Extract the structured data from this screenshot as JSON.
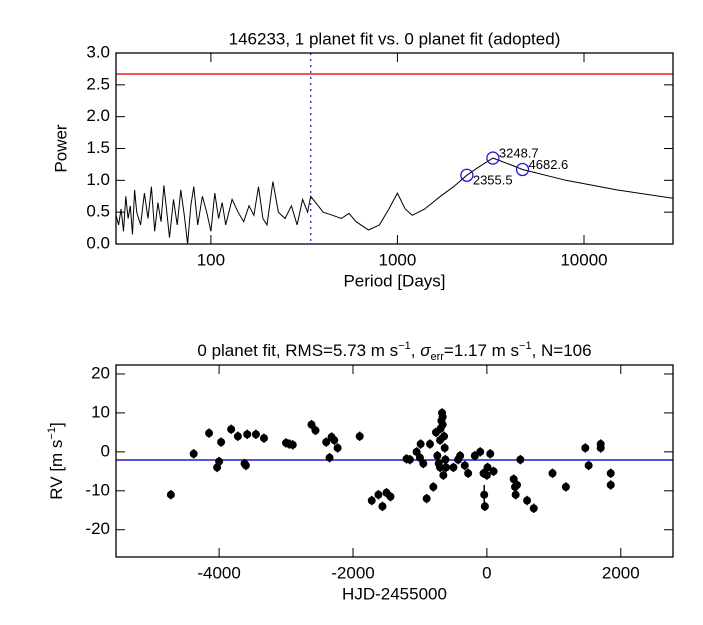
{
  "chart_data": [
    {
      "type": "line",
      "title": "146233,  1 planet fit vs. 0 planet fit (adopted)",
      "xlabel": "Period [Days]",
      "ylabel": "Power",
      "xscale": "log",
      "color": "#000000",
      "x": [
        31,
        32,
        33,
        34,
        35,
        36,
        37,
        38,
        39,
        40,
        42,
        44,
        46,
        48,
        50,
        52,
        54,
        56,
        58,
        60,
        63,
        66,
        69,
        72,
        75,
        78,
        81,
        85,
        90,
        95,
        100,
        105,
        110,
        115,
        120,
        130,
        140,
        150,
        160,
        170,
        180,
        190,
        200,
        215,
        230,
        250,
        270,
        290,
        310,
        330,
        343,
        400,
        450,
        500,
        550,
        600,
        700,
        800,
        900,
        1000,
        1100,
        1200,
        1400,
        1700,
        2000,
        2355.5,
        2700,
        3248.7,
        4000,
        4682.6,
        8000,
        15000,
        30000
      ],
      "values": [
        0.45,
        0.3,
        0.55,
        0.2,
        0.75,
        0.4,
        0.6,
        0.15,
        0.85,
        0.5,
        0.3,
        0.8,
        0.4,
        0.9,
        0.2,
        0.65,
        0.35,
        0.92,
        0.5,
        0.1,
        0.7,
        0.3,
        0.85,
        0.45,
        0.0,
        0.6,
        0.9,
        0.3,
        0.75,
        0.5,
        0.2,
        0.8,
        0.4,
        0.65,
        0.3,
        0.7,
        0.5,
        0.35,
        0.6,
        0.45,
        0.9,
        0.4,
        0.3,
        0.98,
        0.5,
        0.4,
        0.6,
        0.3,
        0.7,
        0.5,
        0.75,
        0.5,
        0.45,
        0.4,
        0.48,
        0.35,
        0.22,
        0.3,
        0.55,
        0.8,
        0.55,
        0.45,
        0.55,
        0.75,
        0.9,
        1.08,
        1.2,
        1.35,
        1.25,
        1.17,
        1.0,
        0.85,
        0.72
      ],
      "xlim": [
        31,
        30000
      ],
      "ylim": [
        0,
        3.0
      ],
      "xticks": [
        100,
        1000,
        10000
      ],
      "yticks": [
        {
          "value": 0,
          "label": "0.0"
        },
        {
          "value": 0.5,
          "label": "0.5"
        },
        {
          "value": 1,
          "label": "1.0"
        },
        {
          "value": 1.5,
          "label": "1.5"
        },
        {
          "value": 2,
          "label": "2.0"
        },
        {
          "value": 2.5,
          "label": "2.5"
        },
        {
          "value": 3,
          "label": "3.0"
        }
      ],
      "hlines": [
        {
          "value": 2.67,
          "color": "#e8201c"
        }
      ],
      "vlines": [
        {
          "value": 343,
          "color": "#1c1cd8",
          "style": "dashed"
        }
      ],
      "annotations": [
        {
          "x": 2355.5,
          "y": 1.08,
          "color": "#1c1cd8"
        },
        {
          "x": 3248.7,
          "y": 1.35,
          "color": "#1c1cd8"
        },
        {
          "x": 4682.6,
          "y": 1.17,
          "color": "#1c1cd8"
        }
      ]
    },
    {
      "type": "scatter",
      "title_parts": [
        "0 planet fit, RMS=5.73 m s",
        "−1",
        ", ",
        "σ",
        "err",
        "=1.17 m s",
        "−1",
        ", N=106"
      ],
      "xlabel": "HJD-2455000",
      "ylabel_parts": [
        "RV [m s",
        "−1",
        "]"
      ],
      "color": "#000000",
      "x": [
        -4720,
        -4380,
        -4150,
        -4030,
        -4000,
        -3970,
        -3820,
        -3720,
        -3620,
        -3600,
        -3580,
        -3450,
        -3330,
        -3000,
        -2950,
        -2900,
        -2620,
        -2560,
        -2400,
        -2350,
        -2320,
        -2280,
        -2230,
        -1900,
        -1720,
        -1620,
        -1560,
        -1500,
        -1440,
        -1200,
        -1150,
        -1050,
        -1000,
        -990,
        -950,
        -900,
        -850,
        -800,
        -760,
        -740,
        -720,
        -700,
        -700,
        -690,
        -680,
        -670,
        -660,
        -660,
        -650,
        -640,
        -630,
        -620,
        -610,
        -500,
        -430,
        -400,
        -330,
        -280,
        -180,
        -100,
        -50,
        -40,
        -30,
        0,
        10,
        50,
        100,
        400,
        420,
        430,
        450,
        500,
        600,
        700,
        980,
        1180,
        1470,
        1520,
        1700,
        1700,
        1850,
        1850
      ],
      "values": [
        -11,
        -0.5,
        4.8,
        -4,
        -2.5,
        2.5,
        5.8,
        4,
        -3,
        -3.5,
        4.5,
        4.5,
        3.5,
        2.3,
        2,
        1.8,
        7,
        5.5,
        2.5,
        -1.5,
        3.8,
        3,
        1,
        4,
        -12.5,
        -11,
        -14,
        -10.5,
        -11.5,
        -1.8,
        -2,
        0,
        -1.5,
        2,
        -3,
        -12,
        2,
        -9,
        5,
        -1,
        -3,
        -4,
        3,
        6,
        8,
        10,
        9,
        7,
        -6,
        4,
        1,
        -2,
        -4,
        -4,
        -2,
        -1,
        -3.5,
        -5.5,
        -1,
        0,
        -5.5,
        -11,
        -14,
        -6,
        -4,
        -0.5,
        -5,
        -7,
        -9,
        -11,
        -8.5,
        -2,
        -12.5,
        -14.5,
        -5.5,
        -9,
        1,
        -3.5,
        1,
        2,
        -5.5,
        -8.5
      ],
      "errors": [
        1.2,
        1.2,
        1.2,
        1.2,
        1.2,
        1.2,
        1.2,
        1.2,
        1.2,
        1.2,
        1.2,
        1.2,
        1.2,
        1.2,
        1.2,
        1.2,
        1.2,
        1.2,
        1.2,
        1.2,
        1.2,
        1.2,
        1.2,
        1.2,
        1.2,
        1.2,
        1.2,
        1.2,
        1.2,
        1.2,
        1.2,
        1.2,
        1.2,
        1.2,
        1.2,
        1.2,
        1.2,
        1.2,
        1.2,
        1.2,
        1.2,
        1.2,
        1.2,
        1.2,
        1.2,
        1.2,
        1.2,
        1.2,
        1.2,
        1.2,
        1.2,
        1.2,
        1.2,
        1.2,
        1.2,
        1.2,
        1.2,
        1.2,
        1.2,
        1.2,
        1.2,
        2.5,
        1.2,
        1.2,
        1.2,
        1.2,
        1.2,
        1.2,
        1.2,
        1.2,
        1.2,
        1.2,
        1.2,
        1.2,
        1.2,
        1.2,
        1.2,
        1.2,
        1.2,
        1.2,
        1.2,
        1.2
      ],
      "xlim": [
        -5540,
        2780
      ],
      "ylim": [
        -27,
        22.3
      ],
      "xticks": [
        -4000,
        -2000,
        0,
        2000
      ],
      "yticks": [
        -20,
        -10,
        0,
        10,
        20
      ],
      "hlines": [
        {
          "value": -2.1,
          "color": "#1c1cd8"
        }
      ]
    }
  ]
}
